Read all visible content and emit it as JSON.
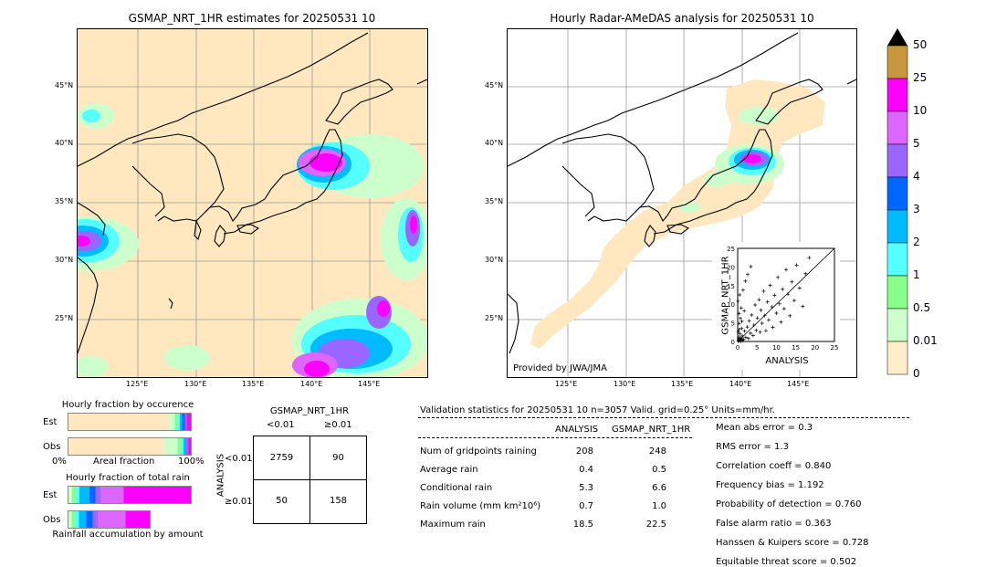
{
  "left_map": {
    "title": "GSMAP_NRT_1HR estimates for 20250531 10",
    "lat_labels": [
      "45°N",
      "40°N",
      "35°N",
      "30°N",
      "25°N"
    ],
    "lon_labels": [
      "125°E",
      "130°E",
      "135°E",
      "140°E",
      "145°E"
    ]
  },
  "right_map": {
    "title": "Hourly Radar-AMeDAS analysis for 20250531 10",
    "lat_labels": [
      "45°N",
      "40°N",
      "35°N",
      "30°N",
      "25°N"
    ],
    "lon_labels": [
      "125°E",
      "130°E",
      "135°E",
      "140°E",
      "145°E"
    ],
    "provided_by": "Provided by JWA/JMA"
  },
  "colorbar": {
    "labels": [
      "50",
      "25",
      "10",
      "5",
      "4",
      "3",
      "2",
      "1",
      "0.5",
      "0.01",
      "0"
    ],
    "colors": [
      "#c8963c",
      "#ff00ff",
      "#dd66ff",
      "#9966ff",
      "#0066ff",
      "#00bbff",
      "#55ffff",
      "#88ff88",
      "#ccffcc",
      "#ffeecc"
    ]
  },
  "occurrence": {
    "title": "Hourly fraction by occurence",
    "row_labels": [
      "Est",
      "Obs"
    ],
    "axis_left": "0%",
    "axis_mid": "Areal fraction",
    "axis_right": "100%"
  },
  "rain_total": {
    "title": "Hourly fraction of total rain",
    "row_labels": [
      "Est",
      "Obs"
    ],
    "axis_label": "Rainfall accumulation by amount"
  },
  "contingency": {
    "title": "GSMAP_NRT_1HR",
    "col_labels": [
      "<0.01",
      "≥0.01"
    ],
    "row_axis": "ANALYSIS",
    "row_labels": [
      "<0.01",
      "≥0.01"
    ],
    "cells": [
      [
        "2759",
        "90"
      ],
      [
        "50",
        "158"
      ]
    ]
  },
  "validation": {
    "header": "Validation statistics for 20250531 10  n=3057 Valid. grid=0.25° Units=mm/hr.",
    "col_headers": [
      "ANALYSIS",
      "GSMAP_NRT_1HR"
    ],
    "rows": [
      {
        "label": "Num of gridpoints raining",
        "analysis": "208",
        "gsmap": "248"
      },
      {
        "label": "Average rain",
        "analysis": "0.4",
        "gsmap": "0.5"
      },
      {
        "label": "Conditional rain",
        "analysis": "5.3",
        "gsmap": "6.6"
      },
      {
        "label": "Rain volume (mm km²10⁶)",
        "analysis": "0.7",
        "gsmap": "1.0"
      },
      {
        "label": "Maximum rain",
        "analysis": "18.5",
        "gsmap": "22.5"
      }
    ],
    "scores": [
      "Mean abs error =    0.3",
      "RMS error =    1.3",
      "Correlation coeff =  0.840",
      "Frequency bias =  1.192",
      "Probability of detection =  0.760",
      "False alarm ratio =  0.363",
      "Hanssen & Kuipers score =  0.728",
      "Equitable threat score =  0.502"
    ]
  },
  "chart_data": {
    "type": "scatter",
    "xlabel": "ANALYSIS",
    "ylabel": "GSMAP_NRT_1HR",
    "xlim": [
      0,
      25
    ],
    "ylim": [
      0,
      25
    ],
    "ticks": [
      "0",
      "5",
      "10",
      "15",
      "20",
      "25"
    ],
    "points": [
      [
        0.2,
        0.5
      ],
      [
        0.3,
        1.2
      ],
      [
        0.5,
        0.3
      ],
      [
        0.6,
        2.1
      ],
      [
        0.8,
        0.9
      ],
      [
        1.0,
        3.5
      ],
      [
        0.4,
        4.8
      ],
      [
        0.7,
        6.2
      ],
      [
        1.2,
        1.5
      ],
      [
        1.5,
        0.6
      ],
      [
        1.8,
        2.8
      ],
      [
        2.1,
        1.1
      ],
      [
        0.3,
        7.5
      ],
      [
        0.9,
        9.0
      ],
      [
        1.1,
        5.4
      ],
      [
        2.5,
        3.9
      ],
      [
        2.8,
        0.8
      ],
      [
        3.0,
        5.5
      ],
      [
        3.3,
        2.2
      ],
      [
        3.6,
        7.1
      ],
      [
        4.0,
        1.6
      ],
      [
        4.2,
        4.4
      ],
      [
        4.5,
        9.8
      ],
      [
        4.8,
        3.0
      ],
      [
        5.1,
        6.3
      ],
      [
        5.5,
        11.2
      ],
      [
        5.8,
        2.5
      ],
      [
        6.0,
        8.4
      ],
      [
        6.3,
        4.9
      ],
      [
        6.7,
        13.5
      ],
      [
        7.0,
        7.0
      ],
      [
        7.3,
        2.9
      ],
      [
        7.7,
        10.6
      ],
      [
        8.0,
        5.8
      ],
      [
        8.4,
        15.1
      ],
      [
        8.8,
        9.3
      ],
      [
        9.1,
        3.8
      ],
      [
        9.5,
        12.4
      ],
      [
        10.0,
        7.6
      ],
      [
        10.4,
        17.2
      ],
      [
        10.8,
        10.1
      ],
      [
        11.2,
        5.2
      ],
      [
        11.6,
        14.0
      ],
      [
        12.0,
        8.8
      ],
      [
        12.5,
        19.3
      ],
      [
        13.0,
        12.7
      ],
      [
        13.5,
        6.9
      ],
      [
        14.0,
        16.0
      ],
      [
        14.6,
        11.0
      ],
      [
        15.2,
        20.5
      ],
      [
        16.0,
        14.3
      ],
      [
        16.8,
        9.4
      ],
      [
        17.5,
        18.2
      ],
      [
        18.5,
        22.5
      ],
      [
        0.1,
        10.8
      ],
      [
        0.5,
        12.5
      ],
      [
        1.4,
        13.8
      ],
      [
        2.0,
        16.2
      ],
      [
        2.6,
        18.0
      ],
      [
        3.4,
        20.1
      ],
      [
        1.7,
        8.2
      ],
      [
        0.2,
        0.1
      ],
      [
        0.4,
        0.2
      ],
      [
        0.6,
        0.4
      ],
      [
        0.8,
        0.1
      ],
      [
        1.0,
        0.7
      ],
      [
        1.3,
        0.3
      ],
      [
        0.15,
        2.5
      ],
      [
        0.35,
        3.2
      ]
    ]
  }
}
